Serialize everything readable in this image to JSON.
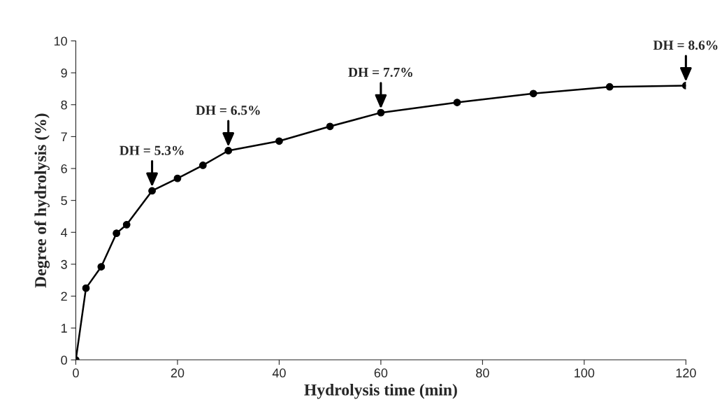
{
  "chart_data": {
    "type": "line",
    "xlabel": "Hydrolysis time (min)",
    "ylabel": "Degree of hydrolysis (%)",
    "x": [
      0,
      2,
      5,
      8,
      10,
      15,
      20,
      25,
      30,
      40,
      50,
      60,
      75,
      90,
      105,
      120
    ],
    "series": [
      {
        "color": "#000000",
        "values": [
          0,
          2.25,
          2.92,
          3.97,
          4.24,
          5.3,
          5.69,
          6.1,
          6.56,
          6.86,
          7.32,
          7.75,
          8.07,
          8.35,
          8.56,
          8.6
        ]
      }
    ],
    "xlim": [
      0,
      120
    ],
    "xticks": [
      0,
      20,
      40,
      60,
      80,
      100,
      120
    ],
    "ylim": [
      0,
      10
    ],
    "yticks": [
      0,
      1,
      2,
      3,
      4,
      5,
      6,
      7,
      8,
      9,
      10
    ],
    "grid": false,
    "legend": false,
    "marker": "circle",
    "line_style": "solid",
    "annotations": [
      {
        "text": "DH = 5.3%",
        "x": 15,
        "y": 5.3
      },
      {
        "text": "DH = 6.5%",
        "x": 30,
        "y": 6.56
      },
      {
        "text": "DH = 7.7%",
        "x": 60,
        "y": 7.75
      },
      {
        "text": "DH = 8.6%",
        "x": 120,
        "y": 8.6
      }
    ]
  }
}
